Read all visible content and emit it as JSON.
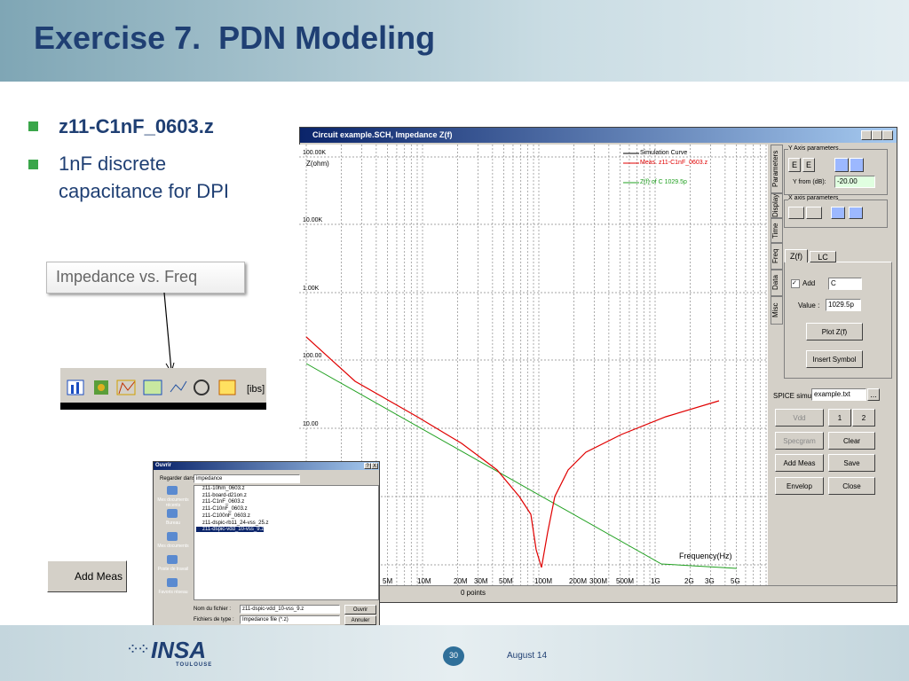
{
  "header": {
    "title": "Exercise 7.  PDN Modeling"
  },
  "bullets": {
    "file": "z11-C1nF_0603.z",
    "desc": [
      "1nF discrete",
      "capacitance for DPI"
    ]
  },
  "callout": "Impedance vs. Freq",
  "toolbar": {
    "ibs": "[ibs]"
  },
  "add_meas_button": "Add Meas",
  "window": {
    "title": "Circuit example.SCH, Impedance Z(f)",
    "plot": {
      "y_axis_label": "Z(ohm)",
      "y_labels": [
        "100.00K",
        "10.00K",
        "1.00K",
        "100.00",
        "10.00"
      ],
      "x_labels": [
        "5M",
        "10M",
        "20M",
        "30M",
        "50M",
        "100M",
        "200M",
        "300M",
        "500M",
        "1G",
        "2G",
        "3G",
        "5G"
      ],
      "x_axis_label": "Frequency(Hz)",
      "legend": [
        "Simulation Curve",
        "Meas. z11-C1nF_0603.z",
        "Z(f) of C 1029.5p"
      ],
      "status": "0 points"
    },
    "panel": {
      "tabs": [
        "Parameters",
        "Display",
        "Time",
        "Freq",
        "Data",
        "Misc"
      ],
      "y_axis_group": "Y Axis parameters",
      "y_from_label": "Y from (dB):",
      "y_from_value": "-20.00",
      "x_axis_group": "X axis parameters",
      "subtabs": [
        "Z(f)",
        "LC"
      ],
      "add_label": "Add",
      "component": "C",
      "value_label": "Value :",
      "value": "1029.5p",
      "plot_button": "Plot Z(f)",
      "insert_button": "Insert Symbol",
      "spice_label": "SPICE simu:",
      "spice_file": "example.txt",
      "browse": "...",
      "buttons": [
        "Vdd",
        "1",
        "2",
        "Specgram",
        "Clear",
        "Add Meas",
        "Save",
        "Envelop",
        "Close"
      ]
    }
  },
  "dialog": {
    "title": "Ouvrir",
    "help": "?",
    "close": "X",
    "look_in_label": "Regarder dans:",
    "look_in": "impedance",
    "places": [
      "Mes documents récents",
      "Bureau",
      "Mes documents",
      "Poste de travail",
      "Favoris réseau"
    ],
    "files": [
      "z11-10hm_0603.z",
      "z11-board-d21on.z",
      "z11-C1nF_0603.z",
      "z11-C10nF_0603.z",
      "z11-C100nF_0603.z",
      "z11-dspic-rb11_24-vss_25.z",
      "z11-dspic-vdd_10-vss_9.z"
    ],
    "file_name_label": "Nom du fichier :",
    "file_name": "z11-dspic-vdd_10-vss_9.z",
    "open": "Ouvrir",
    "type_label": "Fichiers de type :",
    "type": "Impedance file (*.z)",
    "cancel": "Annuler"
  },
  "footer": {
    "logo": "INSA",
    "logo_sub": "TOULOUSE",
    "page": 30,
    "date": "August 14"
  }
}
